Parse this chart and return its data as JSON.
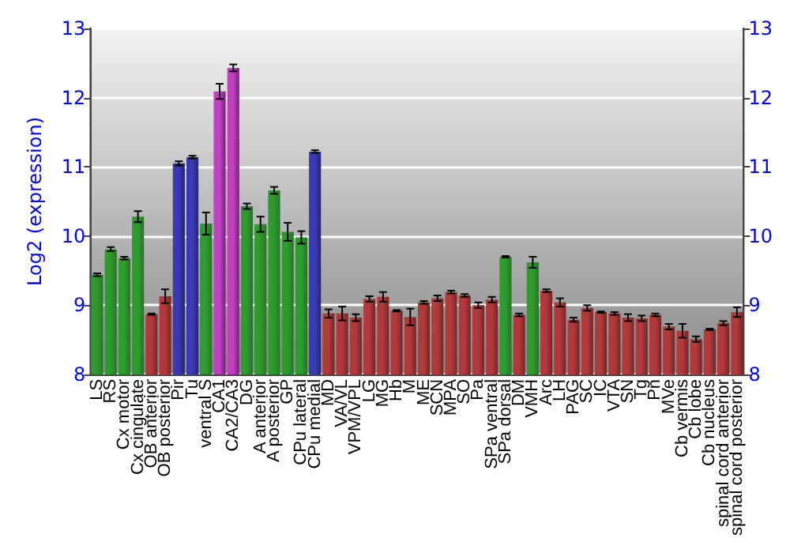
{
  "chart_data": {
    "type": "bar",
    "ylabel": "Log2 (expression)",
    "categories": [
      "LS",
      "RS",
      "Cx motor",
      "Cx cingulate",
      "OB anterior",
      "OB posterior",
      "Pir",
      "Tu",
      "ventral S",
      "CA1",
      "CA2/CA3",
      "DG",
      "A anterior",
      "A posterior",
      "GP",
      "CPu lateral",
      "CPu medial",
      "MD",
      "VA/VL",
      "VPM/VPL",
      "LG",
      "MG",
      "Hb",
      "M",
      "ME",
      "SCN",
      "MPA",
      "SO",
      "Pa",
      "SPa ventral",
      "SPa dorsal",
      "DM",
      "VMH",
      "Arc",
      "LH",
      "PAG",
      "SC",
      "IC",
      "VTA",
      "SN",
      "Tg",
      "Pn",
      "MVe",
      "Cb vermis",
      "Cb lobe",
      "Cb nucleus",
      "spinal cord anterior",
      "spinal cord posterior"
    ],
    "values": [
      9.44,
      9.81,
      9.68,
      10.28,
      8.87,
      9.13,
      11.05,
      11.14,
      10.18,
      12.09,
      12.43,
      10.43,
      10.17,
      10.66,
      10.06,
      9.98,
      11.22,
      8.88,
      8.88,
      8.82,
      9.09,
      9.12,
      8.92,
      8.83,
      9.04,
      9.1,
      9.19,
      9.14,
      9.0,
      9.08,
      9.7,
      8.86,
      9.62,
      9.21,
      9.04,
      8.79,
      8.96,
      8.9,
      8.88,
      8.82,
      8.81,
      8.86,
      8.69,
      8.63,
      8.51,
      8.65,
      8.74,
      8.9
    ],
    "errors": [
      0.02,
      0.03,
      0.02,
      0.08,
      0.01,
      0.1,
      0.03,
      0.02,
      0.16,
      0.11,
      0.05,
      0.04,
      0.11,
      0.05,
      0.13,
      0.09,
      0.02,
      0.06,
      0.1,
      0.05,
      0.04,
      0.07,
      0.01,
      0.12,
      0.02,
      0.04,
      0.02,
      0.02,
      0.04,
      0.04,
      0.01,
      0.02,
      0.08,
      0.02,
      0.06,
      0.03,
      0.04,
      0.01,
      0.02,
      0.05,
      0.04,
      0.02,
      0.04,
      0.1,
      0.04,
      0.01,
      0.03,
      0.07
    ],
    "colors": [
      "#2f9b2f",
      "#2f9b2f",
      "#2f9b2f",
      "#2f9b2f",
      "#b23a3a",
      "#b23a3a",
      "#3a3ab4",
      "#3a3ab4",
      "#2f9b2f",
      "#c23fc2",
      "#c23fc2",
      "#2f9b2f",
      "#2f9b2f",
      "#2f9b2f",
      "#2f9b2f",
      "#2f9b2f",
      "#3a3ab4",
      "#b23a3a",
      "#b23a3a",
      "#b23a3a",
      "#b23a3a",
      "#b23a3a",
      "#b23a3a",
      "#b23a3a",
      "#b23a3a",
      "#b23a3a",
      "#b23a3a",
      "#b23a3a",
      "#b23a3a",
      "#b23a3a",
      "#2f9b2f",
      "#b23a3a",
      "#2f9b2f",
      "#b23a3a",
      "#b23a3a",
      "#b23a3a",
      "#b23a3a",
      "#b23a3a",
      "#b23a3a",
      "#b23a3a",
      "#b23a3a",
      "#b23a3a",
      "#b23a3a",
      "#b23a3a",
      "#b23a3a",
      "#b23a3a",
      "#b23a3a",
      "#b23a3a"
    ],
    "ylim": [
      8,
      13
    ],
    "yticks": [
      8,
      9,
      10,
      11,
      12,
      13
    ],
    "y2lim": [
      8,
      13
    ],
    "y2ticks": [
      8,
      9,
      10,
      11,
      12,
      13
    ],
    "grid": "y"
  }
}
